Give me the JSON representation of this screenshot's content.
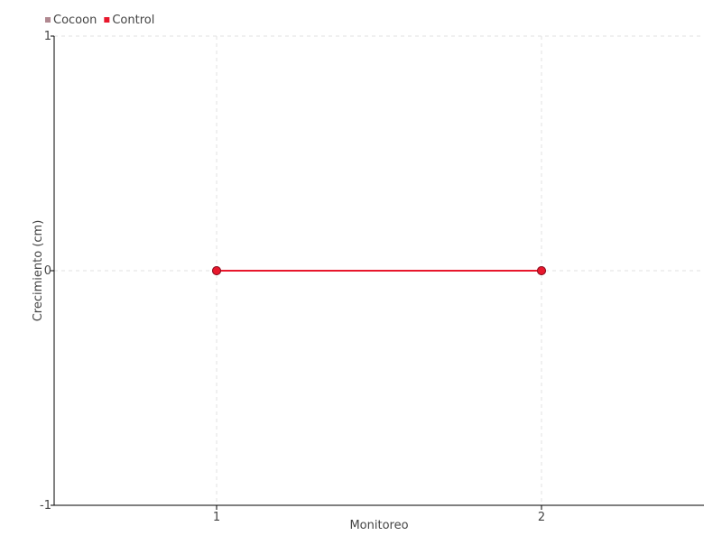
{
  "chart_data": {
    "type": "line",
    "title": "",
    "xlabel": "Monitoreo",
    "ylabel": "Crecimiento (cm)",
    "x": [
      1,
      2
    ],
    "xlim": [
      0.5,
      2.5
    ],
    "ylim": [
      -1,
      1
    ],
    "xticks": [
      1,
      2
    ],
    "yticks": [
      -1,
      0,
      1
    ],
    "grid": true,
    "legend_position": "top-left",
    "series": [
      {
        "name": "Cocoon",
        "values": [
          0,
          0
        ],
        "color": "#b08890"
      },
      {
        "name": "Control",
        "values": [
          0,
          0
        ],
        "color": "#e8172c"
      }
    ]
  }
}
